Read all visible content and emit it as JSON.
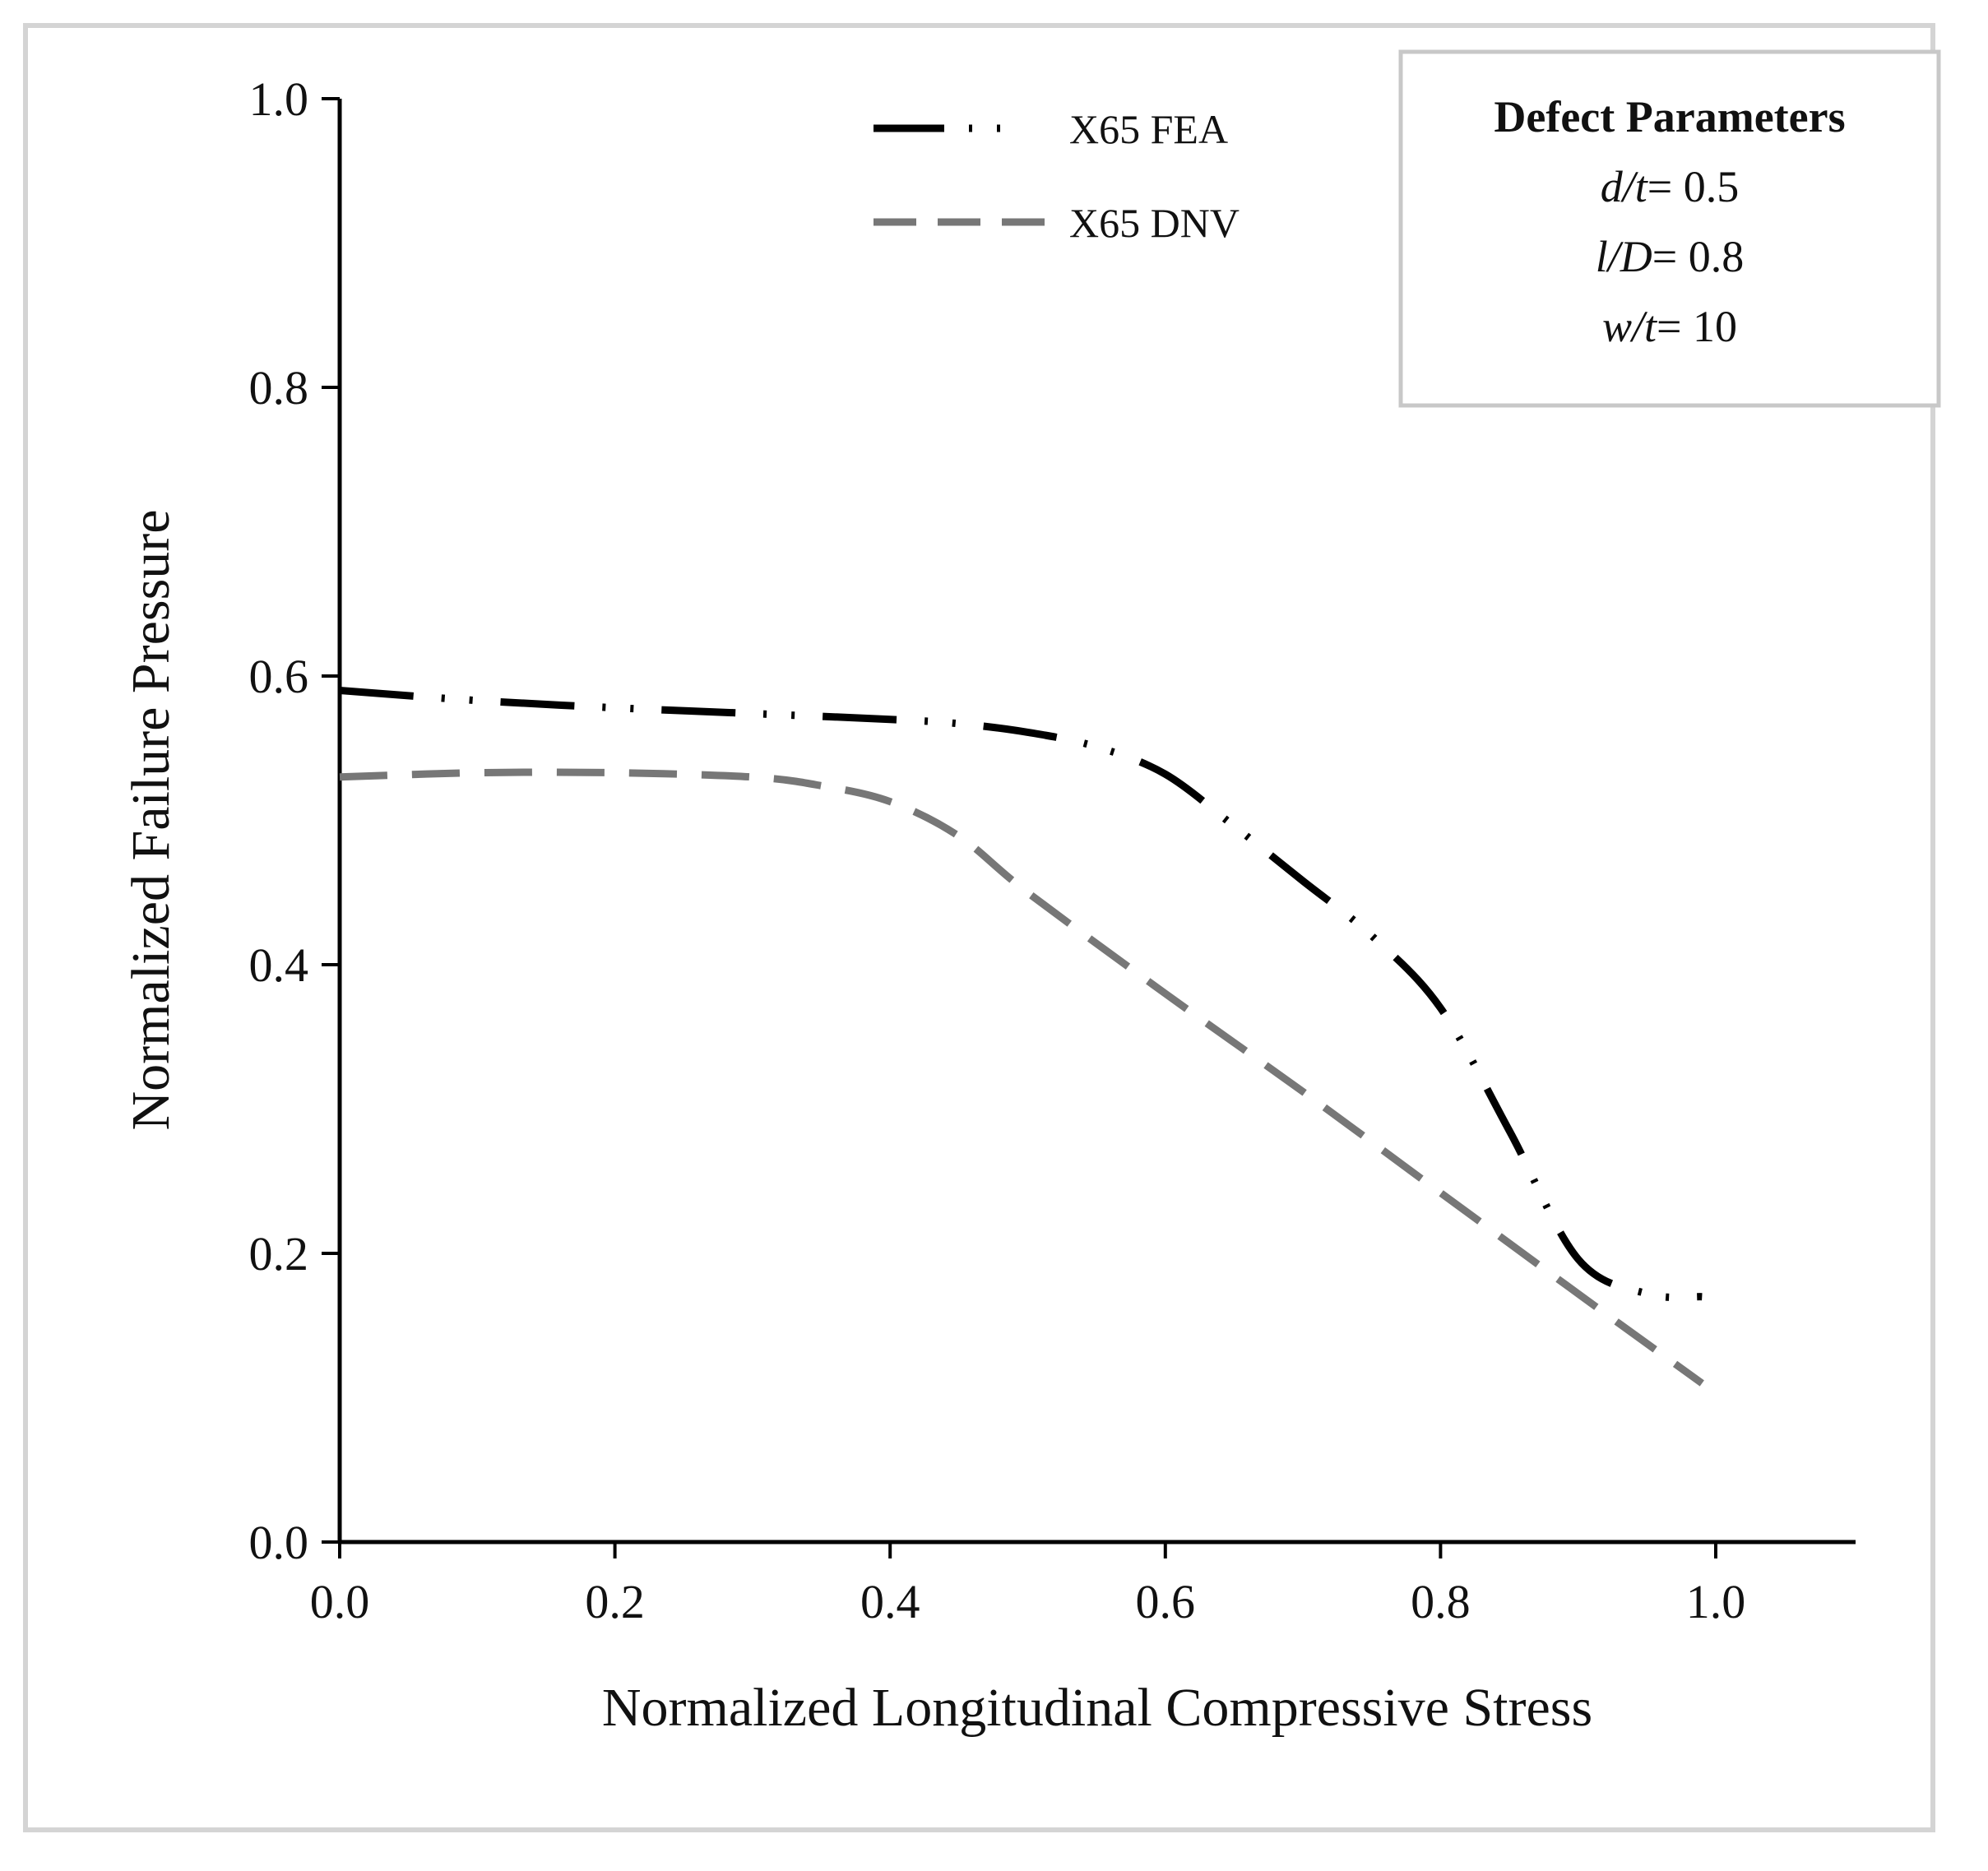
{
  "chart_data": {
    "type": "line",
    "title": "",
    "xlabel": "Normalized Longitudinal Compressive Stress",
    "ylabel": "Normalized Failure Pressure",
    "xlim": [
      0.0,
      1.1
    ],
    "ylim": [
      0.0,
      1.0
    ],
    "xticks": [
      "0.0",
      "0.2",
      "0.4",
      "0.6",
      "0.8",
      "1.0"
    ],
    "yticks": [
      "0.0",
      "0.2",
      "0.4",
      "0.6",
      "0.8",
      "1.0"
    ],
    "grid": false,
    "legend_position": "top-center",
    "series": [
      {
        "name": "X65 FEA",
        "style": "long-dash-dot-dot",
        "color": "#000000",
        "x": [
          0.0,
          0.1,
          0.2,
          0.3,
          0.4,
          0.45,
          0.5,
          0.55,
          0.6,
          0.65,
          0.7,
          0.75,
          0.8,
          0.85,
          0.9,
          0.95,
          0.99
        ],
        "y": [
          0.59,
          0.583,
          0.578,
          0.574,
          0.57,
          0.567,
          0.561,
          0.551,
          0.532,
          0.496,
          0.458,
          0.42,
          0.37,
          0.285,
          0.196,
          0.172,
          0.17
        ]
      },
      {
        "name": "X65 DNV",
        "style": "dashed",
        "color": "#777777",
        "x": [
          0.0,
          0.1,
          0.2,
          0.3,
          0.35,
          0.4,
          0.45,
          0.5,
          0.6,
          0.7,
          0.8,
          0.9,
          0.99
        ],
        "y": [
          0.53,
          0.533,
          0.533,
          0.53,
          0.524,
          0.513,
          0.489,
          0.45,
          0.38,
          0.312,
          0.242,
          0.172,
          0.11
        ]
      }
    ]
  },
  "legend": {
    "fea_label": "X65 FEA",
    "dnv_label": "X65 DNV"
  },
  "parameters": {
    "title": "Defect Parameters",
    "lines": [
      {
        "var": "d/t",
        "value": "= 0.5"
      },
      {
        "var": "l/D",
        "value": "= 0.8"
      },
      {
        "var": "w/t",
        "value": "= 10"
      }
    ]
  }
}
